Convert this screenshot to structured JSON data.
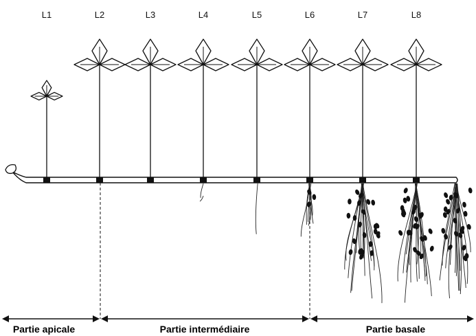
{
  "plant": {
    "leaves": [
      {
        "id": "L1",
        "label": "L1",
        "root_level": 0
      },
      {
        "id": "L2",
        "label": "L2",
        "root_level": 0
      },
      {
        "id": "L3",
        "label": "L3",
        "root_level": 0
      },
      {
        "id": "L4",
        "label": "L4",
        "root_level": 1
      },
      {
        "id": "L5",
        "label": "L5",
        "root_level": 2
      },
      {
        "id": "L6",
        "label": "L6",
        "root_level": 3
      },
      {
        "id": "L7",
        "label": "L7",
        "root_level": 4
      },
      {
        "id": "L8",
        "label": "L8",
        "root_level": 4
      }
    ],
    "terminal_root_level": 4
  },
  "sections": {
    "apical": "Partie apicale",
    "intermediate": "Partie intermédiaire",
    "basal": "Partie basale"
  }
}
